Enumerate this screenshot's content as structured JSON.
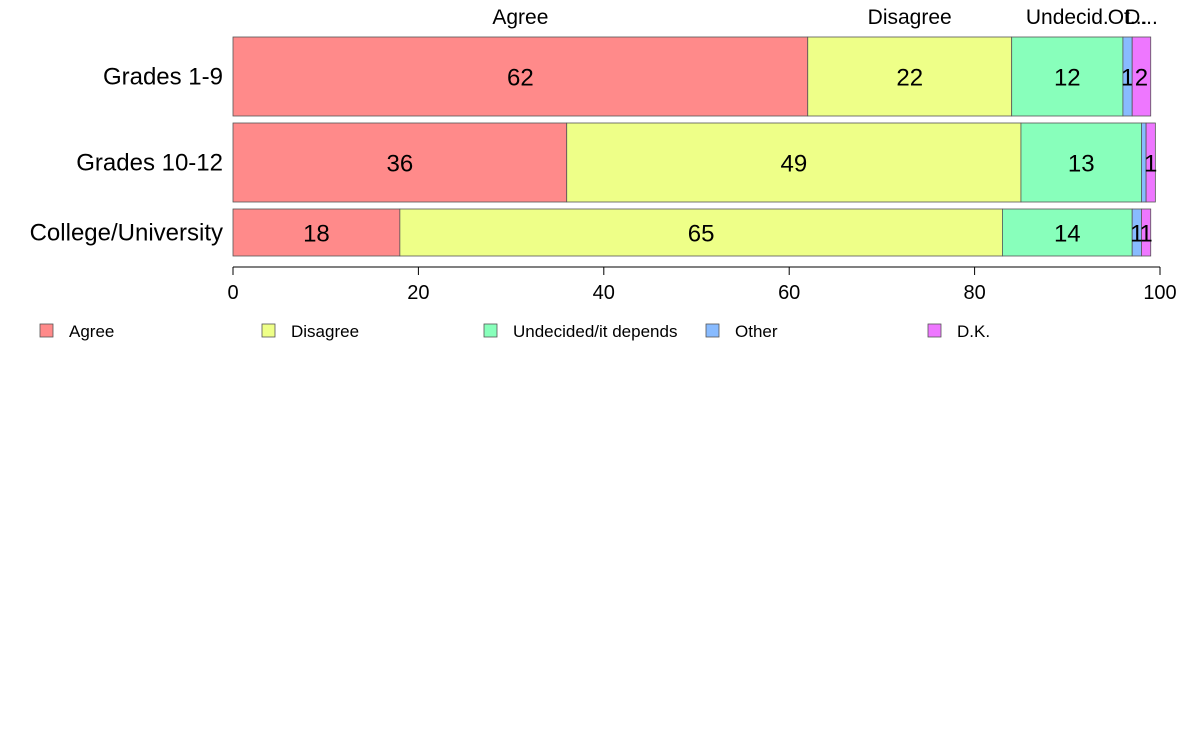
{
  "chart_data": {
    "type": "bar",
    "orientation": "horizontal",
    "stacked": true,
    "categories": [
      "Grades 1-9",
      "Grades 10-12",
      "College/University"
    ],
    "series": [
      {
        "name": "Agree",
        "values": [
          62,
          36,
          18
        ],
        "color": "#ff8a8a"
      },
      {
        "name": "Disagree",
        "values": [
          22,
          49,
          65
        ],
        "color": "#eeff88"
      },
      {
        "name": "Undecided/it depends",
        "values": [
          12,
          13,
          14
        ],
        "color": "#88ffbb"
      },
      {
        "name": "Other",
        "values": [
          1,
          0.5,
          1
        ],
        "color": "#88bbff"
      },
      {
        "name": "D.K.",
        "values": [
          2,
          1,
          1
        ],
        "color": "#ee77ff"
      }
    ],
    "segment_labels": [
      [
        "62",
        "22",
        "12",
        "1",
        "2"
      ],
      [
        "36",
        "49",
        "13",
        "",
        "1"
      ],
      [
        "18",
        "65",
        "14",
        "1",
        "1"
      ]
    ],
    "column_labels": [
      "Agree",
      "Disagree",
      "Undecid.",
      "Ot...",
      "D..."
    ],
    "xlim": [
      0,
      100
    ],
    "xticks": [
      "0",
      "20",
      "40",
      "60",
      "80",
      "100"
    ],
    "grid": false,
    "legend": {
      "position": "bottom",
      "entries": [
        "Agree",
        "Disagree",
        "Undecided/it depends",
        "Other",
        "D.K."
      ]
    }
  }
}
